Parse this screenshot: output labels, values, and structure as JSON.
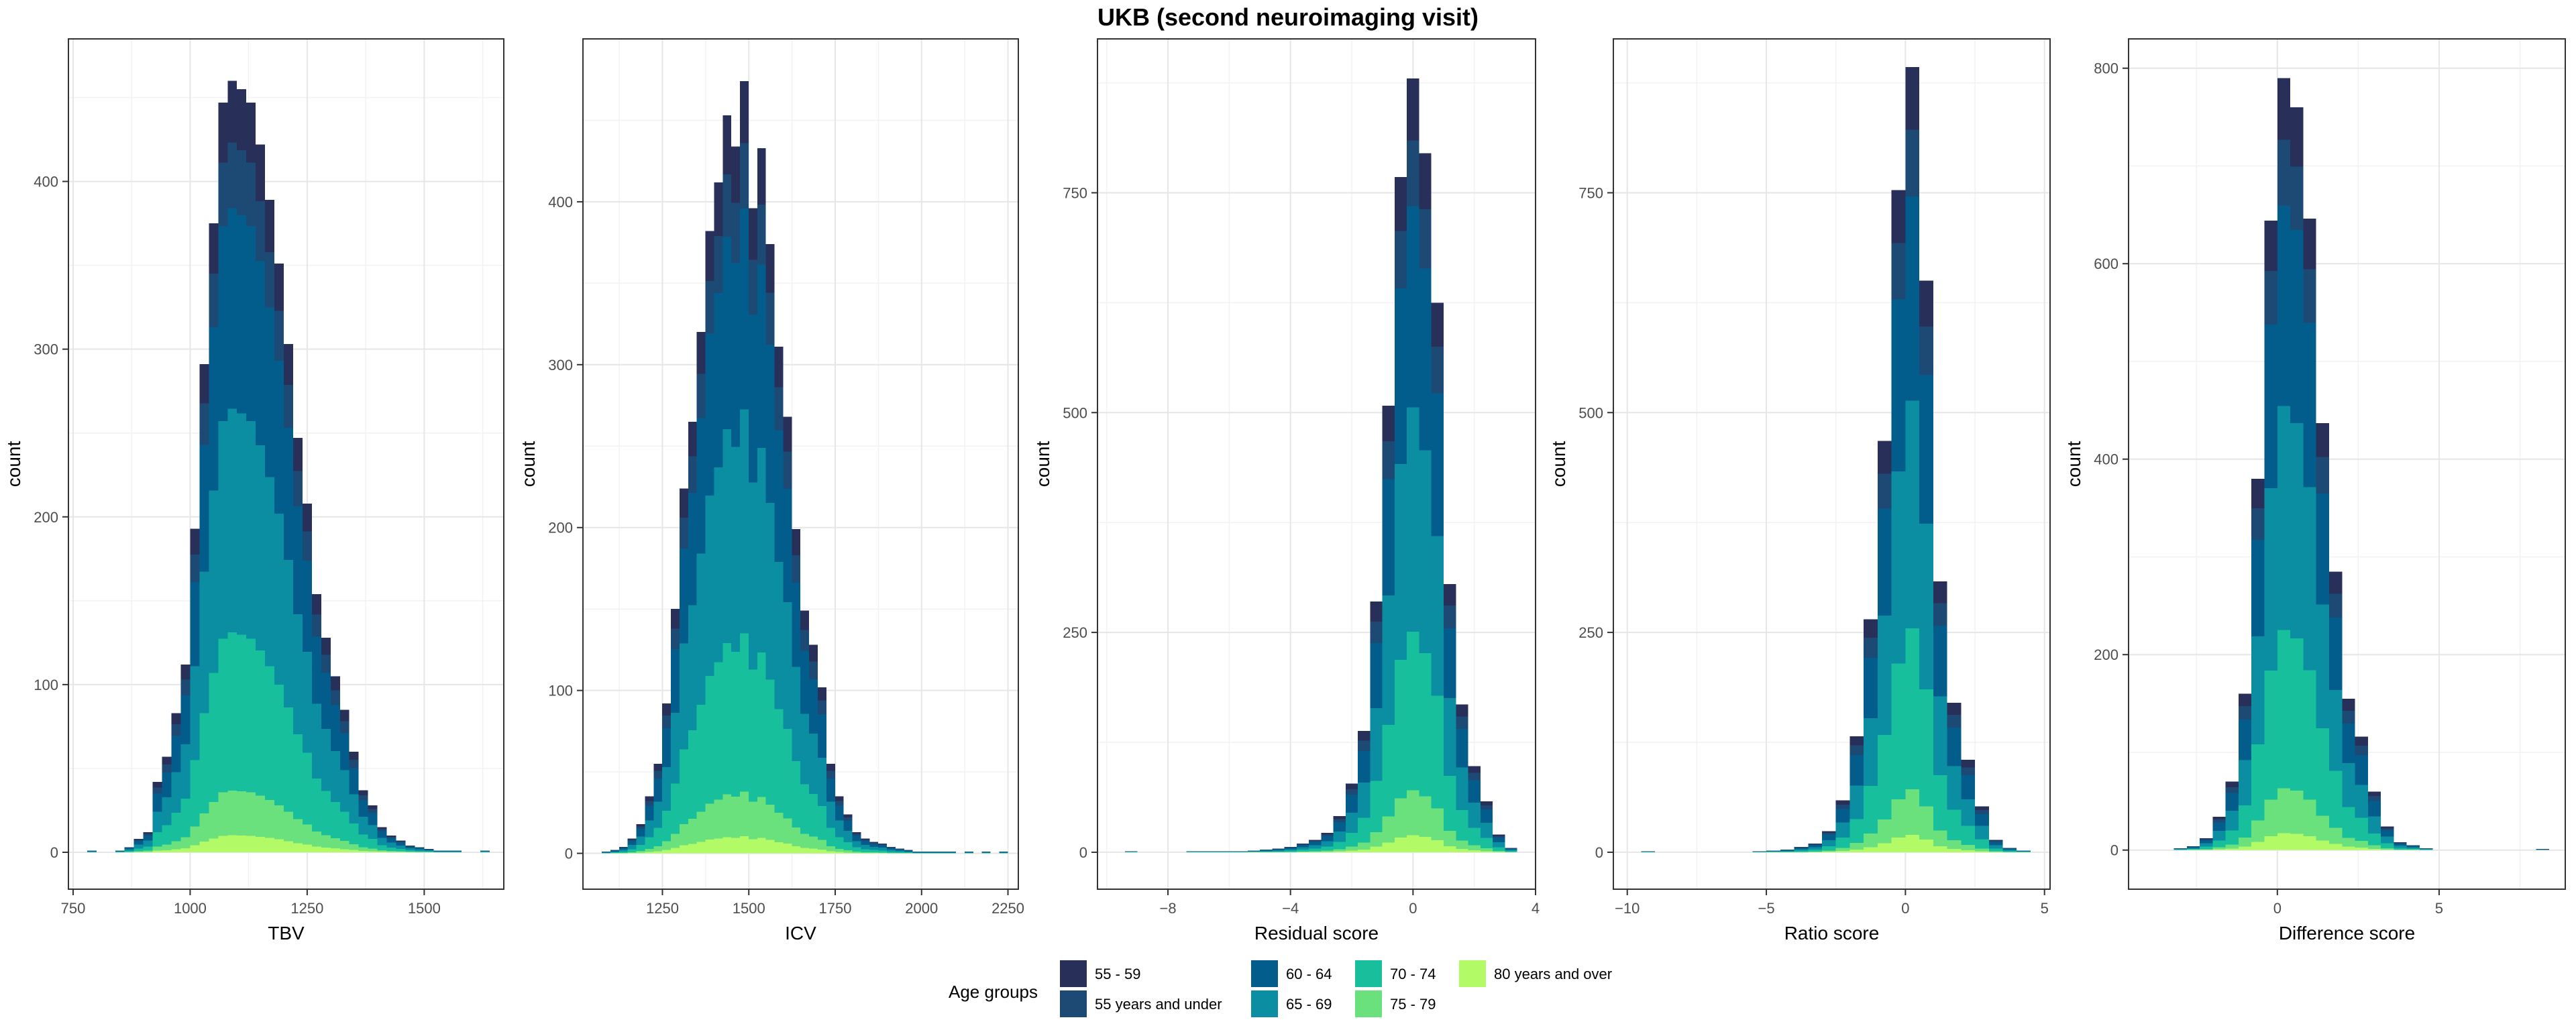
{
  "figure": {
    "title": "UKB (second neuroimaging visit)"
  },
  "legend": {
    "title": "Age groups",
    "placement": "bottom",
    "entries": [
      {
        "label": "55 - 59",
        "color": "#28305a"
      },
      {
        "label": "55 years and under",
        "color": "#1c4a75"
      },
      {
        "label": "60 - 64",
        "color": "#035d8c"
      },
      {
        "label": "65 - 69",
        "color": "#0b8ea2"
      },
      {
        "label": "70 - 74",
        "color": "#18bf9d"
      },
      {
        "label": "75 - 79",
        "color": "#6ae17c"
      },
      {
        "label": "80 years and over",
        "color": "#b3fb66"
      }
    ]
  },
  "stack_order_bottom_to_top": [
    "80 years and over",
    "75 - 79",
    "70 - 74",
    "65 - 69",
    "60 - 64",
    "55 years and under",
    "55 - 59"
  ],
  "chart_data": [
    {
      "type": "bar",
      "style": "stacked histogram",
      "xlabel": "TBV",
      "ylabel": "count",
      "xlim": [
        740,
        1670
      ],
      "ylim": [
        -22,
        485
      ],
      "xticks": [
        750,
        1000,
        1250,
        1500
      ],
      "yticks": [
        0,
        100,
        200,
        300,
        400
      ],
      "grid": true,
      "bin_width": 20,
      "bin_centers": [
        790,
        850,
        870,
        890,
        910,
        930,
        950,
        970,
        990,
        1010,
        1030,
        1050,
        1070,
        1090,
        1110,
        1130,
        1150,
        1170,
        1190,
        1210,
        1230,
        1250,
        1270,
        1290,
        1310,
        1330,
        1350,
        1370,
        1390,
        1410,
        1430,
        1450,
        1470,
        1490,
        1510,
        1530,
        1550,
        1570,
        1630
      ],
      "totals": [
        1,
        1,
        3,
        8,
        12,
        42,
        57,
        83,
        112,
        193,
        291,
        375,
        447,
        460,
        455,
        447,
        422,
        389,
        351,
        303,
        247,
        208,
        154,
        128,
        105,
        85,
        60,
        37,
        28,
        15,
        10,
        7,
        4,
        3,
        2,
        1,
        1,
        1,
        1
      ]
    },
    {
      "type": "bar",
      "style": "stacked histogram",
      "xlabel": "ICV",
      "ylabel": "count",
      "xlim": [
        1020,
        2280
      ],
      "ylim": [
        -22,
        500
      ],
      "xticks": [
        1250,
        1500,
        1750,
        2000,
        2250
      ],
      "yticks": [
        0,
        100,
        200,
        300,
        400
      ],
      "grid": true,
      "bin_width": 25,
      "bin_centers": [
        1087,
        1112,
        1137,
        1162,
        1187,
        1212,
        1237,
        1262,
        1287,
        1312,
        1337,
        1362,
        1387,
        1412,
        1437,
        1462,
        1487,
        1512,
        1537,
        1562,
        1587,
        1612,
        1637,
        1662,
        1687,
        1712,
        1737,
        1762,
        1787,
        1812,
        1837,
        1862,
        1887,
        1912,
        1937,
        1962,
        1987,
        2012,
        2037,
        2062,
        2087,
        2137,
        2187,
        2237
      ],
      "totals": [
        1,
        2,
        4,
        9,
        18,
        35,
        55,
        92,
        150,
        224,
        265,
        320,
        382,
        412,
        453,
        434,
        474,
        396,
        433,
        374,
        311,
        268,
        199,
        149,
        128,
        102,
        55,
        35,
        24,
        13,
        9,
        7,
        6,
        4,
        3,
        2,
        1,
        1,
        1,
        1,
        1,
        1,
        1,
        1
      ]
    },
    {
      "type": "bar",
      "style": "stacked histogram",
      "xlabel": "Residual score",
      "ylabel": "count",
      "xlim": [
        -10.3,
        4.0
      ],
      "ylim": [
        -42,
        925
      ],
      "xticks": [
        -8,
        -4,
        0,
        4
      ],
      "yticks": [
        0,
        250,
        500,
        750
      ],
      "grid": true,
      "bin_width": 0.4,
      "bin_centers": [
        -9.2,
        -7.2,
        -6.8,
        -6.4,
        -6.0,
        -5.6,
        -5.2,
        -4.8,
        -4.4,
        -4.0,
        -3.6,
        -3.2,
        -2.8,
        -2.4,
        -2.0,
        -1.6,
        -1.2,
        -0.8,
        -0.4,
        0.0,
        0.4,
        0.8,
        1.2,
        1.6,
        2.0,
        2.4,
        2.8,
        3.2
      ],
      "totals": [
        1,
        1,
        1,
        1,
        1,
        1,
        2,
        3,
        4,
        6,
        10,
        14,
        22,
        41,
        78,
        138,
        285,
        508,
        768,
        880,
        795,
        625,
        305,
        168,
        98,
        58,
        20,
        5
      ]
    },
    {
      "type": "bar",
      "style": "stacked histogram",
      "xlabel": "Ratio score",
      "ylabel": "count",
      "xlim": [
        -10.5,
        5.2
      ],
      "ylim": [
        -42,
        925
      ],
      "xticks": [
        -10,
        -5,
        0,
        5
      ],
      "yticks": [
        0,
        250,
        500,
        750
      ],
      "grid": true,
      "bin_width": 0.5,
      "bin_centers": [
        -9.25,
        -5.25,
        -4.75,
        -4.25,
        -3.75,
        -3.25,
        -2.75,
        -2.25,
        -1.75,
        -1.25,
        -0.75,
        -0.25,
        0.25,
        0.75,
        1.25,
        1.75,
        2.25,
        2.75,
        3.25,
        3.75,
        4.25
      ],
      "totals": [
        1,
        1,
        2,
        3,
        6,
        10,
        24,
        59,
        132,
        265,
        468,
        753,
        893,
        650,
        308,
        170,
        105,
        52,
        14,
        5,
        2
      ]
    },
    {
      "type": "bar",
      "style": "stacked histogram",
      "xlabel": "Difference score",
      "ylabel": "count",
      "xlim": [
        -4.6,
        8.9
      ],
      "ylim": [
        -40,
        830
      ],
      "xticks": [
        0,
        5
      ],
      "yticks": [
        0,
        200,
        400,
        600,
        800
      ],
      "grid": true,
      "bin_width": 0.4,
      "bin_centers": [
        -3.0,
        -2.6,
        -2.2,
        -1.8,
        -1.4,
        -1.0,
        -0.6,
        -0.2,
        0.2,
        0.6,
        1.0,
        1.4,
        1.8,
        2.2,
        2.6,
        3.0,
        3.4,
        3.8,
        4.2,
        4.6,
        8.2
      ],
      "totals": [
        2,
        4,
        12,
        34,
        70,
        160,
        380,
        644,
        790,
        760,
        646,
        437,
        285,
        155,
        116,
        60,
        24,
        8,
        5,
        2,
        1
      ]
    }
  ]
}
